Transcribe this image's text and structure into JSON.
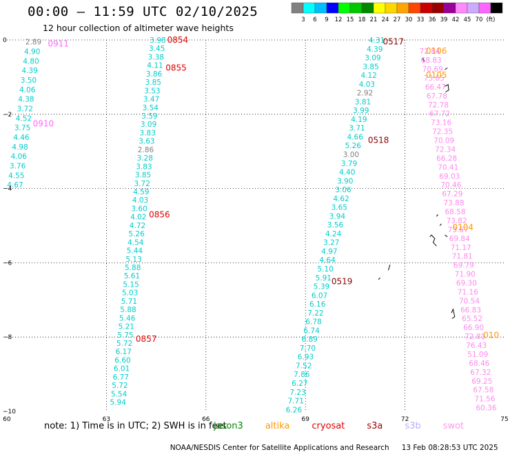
{
  "header": {
    "title": "00:00 – 11:59 UTC 02/10/2025",
    "subtitle": "12 hour collection of altimeter wave heights"
  },
  "colorbar": {
    "colors": [
      "#808080",
      "#00ffff",
      "#00bfff",
      "#0000ff",
      "#00ff00",
      "#00c800",
      "#008800",
      "#ffff00",
      "#ffd700",
      "#ffa500",
      "#ff4500",
      "#cc0000",
      "#990000",
      "#990099",
      "#ff88ff",
      "#ccaaff",
      "#ff66ff",
      "#000000"
    ],
    "labels": [
      "3",
      "6",
      "9",
      "12",
      "15",
      "18",
      "21",
      "24",
      "27",
      "30",
      "33",
      "36",
      "39",
      "42",
      "45",
      "70",
      "(ft)"
    ]
  },
  "footer": {
    "note": "note: 1) Time is in UTC; 2) SWH is in feet",
    "satellites": [
      {
        "name": "jason3",
        "color": "#008800"
      },
      {
        "name": "altika",
        "color": "#ff9900"
      },
      {
        "name": "cryosat",
        "color": "#dd0000"
      },
      {
        "name": "s3a",
        "color": "#990000"
      },
      {
        "name": "s3b",
        "color": "#bbaaff"
      },
      {
        "name": "swot",
        "color": "#ff99ee"
      }
    ],
    "credit": "NOAA/NESDIS Center for Satellite Applications and Research",
    "generated": "13 Feb 08:28:53 UTC 2025"
  },
  "chart_data": {
    "type": "scatter",
    "xlim": [
      60,
      75
    ],
    "ylim": [
      -10,
      0
    ],
    "x_ticks": [
      "60",
      "63",
      "66",
      "69",
      "72",
      "75"
    ],
    "y_ticks": [
      "0",
      "−2",
      "−4",
      "−6",
      "−8",
      "−10"
    ],
    "grid": true,
    "tracks": [
      {
        "color": "#00cccc",
        "start": [
          60.8,
          -0.05
        ],
        "end": [
          60.25,
          -3.9
        ],
        "values": [
          "2.89",
          "4.90",
          "4.80",
          "4.39",
          "3.50",
          "4.06",
          "4.38",
          "3.72",
          "4.52",
          "3.75",
          "4.46",
          "4.98",
          "4.06",
          "3.76",
          "4.55",
          "4.67"
        ],
        "value_colors": {
          "0": "#808080"
        }
      },
      {
        "color": "#00cccc",
        "start": [
          64.55,
          -0.0
        ],
        "end": [
          63.35,
          -9.75
        ],
        "values": [
          "3.98",
          "3.45",
          "3.38",
          "4.11",
          "3.86",
          "3.85",
          "3.53",
          "3.47",
          "3.54",
          "3.59",
          "3.09",
          "3.83",
          "3.63",
          "2.86",
          "3.28",
          "3.83",
          "3.85",
          "3.72",
          "4.59",
          "4.03",
          "3.60",
          "4.02",
          "4.72",
          "5.26",
          "4.54",
          "5.44",
          "5.13",
          "5.88",
          "5.61",
          "5.15",
          "5.03",
          "5.71",
          "5.88",
          "5.46",
          "5.21",
          "5.75",
          "5.72",
          "6.17",
          "6.60",
          "6.01",
          "6.77",
          "5.72",
          "5.54",
          "5.94"
        ],
        "value_colors": {
          "13": "#808080"
        }
      },
      {
        "color": "#00cccc",
        "start": [
          71.15,
          0.0
        ],
        "end": [
          68.65,
          -9.95
        ],
        "values": [
          "4.31",
          "4.39",
          "3.09",
          "3.85",
          "4.12",
          "4.03",
          "2.92",
          "3.81",
          "3.99",
          "4.19",
          "3.71",
          "4.66",
          "5.26",
          "3.00",
          "3.79",
          "4.40",
          "3.90",
          "3.06",
          "4.62",
          "3.65",
          "3.94",
          "3.56",
          "4.24",
          "3.27",
          "4.97",
          "4.64",
          "5.10",
          "5.91",
          "5.39",
          "6.07",
          "6.16",
          "7.22",
          "6.78",
          "6.74",
          "6.89",
          "7.70",
          "6.93",
          "7.52",
          "7.86",
          "6.27",
          "7.23",
          "7.71",
          "6.26"
        ],
        "value_colors": {
          "6": "#808080",
          "13": "#808080"
        }
      },
      {
        "color": "#ff88ee",
        "start": [
          72.75,
          -0.3
        ],
        "end": [
          74.45,
          -9.9
        ],
        "values": [
          "72.84",
          "68.83",
          "70.69",
          "73.65",
          "66.47",
          "67.78",
          "72.78",
          "67.72",
          "73.16",
          "72.35",
          "70.09",
          "72.34",
          "66.28",
          "70.41",
          "69.03",
          "70.46",
          "67.29",
          "73.88",
          "68.58",
          "73.82",
          "73.67",
          "69.84",
          "71.17",
          "71.81",
          "69.79",
          "71.90",
          "69.30",
          "71.16",
          "70.54",
          "66.83",
          "65.52",
          "66.90",
          "72.81",
          "76.43",
          "51.09",
          "68.46",
          "67.32",
          "69.25",
          "67.58",
          "71.56",
          "60.36"
        ],
        "value_colors": {}
      }
    ],
    "pass_labels": [
      {
        "text": "0911",
        "x": 61.55,
        "y": -0.1,
        "color": "#ff66ff"
      },
      {
        "text": "0910",
        "x": 61.1,
        "y": -2.25,
        "color": "#ff66ff"
      },
      {
        "text": "0854",
        "x": 65.15,
        "y": 0.0,
        "color": "#dd0000"
      },
      {
        "text": "0855",
        "x": 65.1,
        "y": -0.75,
        "color": "#dd0000"
      },
      {
        "text": "0856",
        "x": 64.6,
        "y": -4.7,
        "color": "#dd0000"
      },
      {
        "text": "0857",
        "x": 64.2,
        "y": -8.05,
        "color": "#dd0000"
      },
      {
        "text": "0517",
        "x": 71.65,
        "y": -0.05,
        "color": "#880000"
      },
      {
        "text": "0518",
        "x": 71.2,
        "y": -2.7,
        "color": "#880000"
      },
      {
        "text": "0519",
        "x": 70.1,
        "y": -6.5,
        "color": "#880000"
      },
      {
        "text": "0106",
        "x": 72.95,
        "y": -0.3,
        "color": "#ff9900"
      },
      {
        "text": "0105",
        "x": 72.95,
        "y": -0.95,
        "color": "#ff9900"
      },
      {
        "text": "0104",
        "x": 73.75,
        "y": -5.05,
        "color": "#ff9900"
      },
      {
        "text": "010",
        "x": 74.6,
        "y": -7.95,
        "color": "#ff9900"
      }
    ],
    "islands": [
      [
        [
          72.5,
          -0.55
        ],
        [
          72.55,
          -0.5
        ],
        [
          72.58,
          -0.6
        ]
      ],
      [
        [
          73.2,
          -1.25
        ],
        [
          73.3,
          -1.2
        ],
        [
          73.32,
          -1.35
        ],
        [
          73.22,
          -1.4
        ]
      ],
      [
        [
          73.2,
          -0.8
        ],
        [
          73.28,
          -0.75
        ]
      ],
      [
        [
          72.75,
          -5.3
        ],
        [
          72.8,
          -5.25
        ],
        [
          72.9,
          -5.35
        ],
        [
          72.85,
          -5.45
        ],
        [
          72.95,
          -5.55
        ]
      ],
      [
        [
          73.05,
          -5.0
        ],
        [
          73.1,
          -4.95
        ]
      ],
      [
        [
          72.95,
          -4.75
        ],
        [
          73.0,
          -4.7
        ]
      ],
      [
        [
          73.2,
          -5.25
        ],
        [
          73.28,
          -5.3
        ]
      ],
      [
        [
          71.5,
          -6.2
        ],
        [
          71.55,
          -6.05
        ]
      ],
      [
        [
          71.2,
          -6.45
        ],
        [
          71.25,
          -6.4
        ]
      ],
      [
        [
          73.4,
          -7.35
        ],
        [
          73.45,
          -7.25
        ],
        [
          73.5,
          -7.45
        ],
        [
          73.42,
          -7.5
        ]
      ]
    ]
  }
}
